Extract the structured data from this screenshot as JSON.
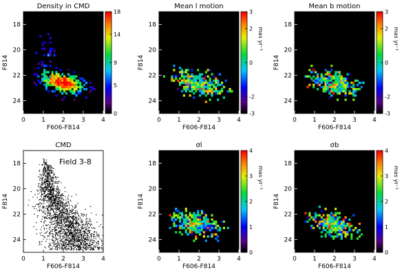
{
  "chart_data": [
    {
      "type": "heatmap",
      "title": "Density in CMD",
      "xlabel": "F606-F814",
      "ylabel": "F814",
      "xlim": [
        0,
        4
      ],
      "ylim": [
        25,
        17
      ],
      "xticks": [
        "0",
        "1",
        "2",
        "3",
        "4"
      ],
      "yticks": [
        "18",
        "20",
        "22",
        "24"
      ],
      "colorbar": {
        "min": 0,
        "max": 18,
        "ticks": [
          "0",
          "5",
          "9",
          "14",
          "18"
        ],
        "label": ""
      },
      "distribution": {
        "center": [
          2.0,
          22.6
        ],
        "color_max": 18
      }
    },
    {
      "type": "heatmap",
      "title": "Mean l motion",
      "xlabel": "F606-F814",
      "ylabel": "F814",
      "xlim": [
        0,
        4
      ],
      "ylim": [
        25,
        17
      ],
      "xticks": [
        "0",
        "1",
        "2",
        "3",
        "4"
      ],
      "yticks": [
        "18",
        "20",
        "22",
        "24"
      ],
      "colorbar": {
        "min": -3,
        "max": 3,
        "ticks": [
          "-3",
          "-2",
          "0",
          "2",
          "3"
        ],
        "label": "mas yr⁻¹"
      },
      "distribution": {
        "center": [
          2.0,
          22.6
        ],
        "color_max": 3
      }
    },
    {
      "type": "heatmap",
      "title": "Mean b motion",
      "xlabel": "F606-F814",
      "ylabel": "F814",
      "xlim": [
        0,
        4
      ],
      "ylim": [
        25,
        17
      ],
      "xticks": [
        "0",
        "1",
        "2",
        "3",
        "4"
      ],
      "yticks": [
        "18",
        "20",
        "22",
        "24"
      ],
      "colorbar": {
        "min": -3,
        "max": 3,
        "ticks": [
          "-3",
          "-2",
          "0",
          "2",
          "3"
        ],
        "label": "mas yr⁻¹"
      },
      "distribution": {
        "center": [
          2.0,
          22.6
        ],
        "color_max": 3
      }
    },
    {
      "type": "scatter",
      "title": "CMD",
      "annotation": "Field 3-8",
      "xlabel": "F606-F814",
      "ylabel": "F814",
      "xlim": [
        0,
        4
      ],
      "ylim": [
        25,
        17
      ],
      "xticks": [
        "0",
        "1",
        "2",
        "3",
        "4"
      ],
      "yticks": [
        "18",
        "20",
        "22",
        "24"
      ],
      "ridge": [
        [
          1.1,
          18.0
        ],
        [
          1.3,
          20.0
        ],
        [
          1.7,
          21.5
        ],
        [
          2.2,
          22.6
        ],
        [
          2.6,
          24.0
        ]
      ]
    },
    {
      "type": "heatmap",
      "title": "σl",
      "xlabel": "F606-F814",
      "ylabel": "F814",
      "xlim": [
        0,
        4
      ],
      "ylim": [
        25,
        17
      ],
      "xticks": [
        "0",
        "1",
        "2",
        "3",
        "4"
      ],
      "yticks": [
        "18",
        "20",
        "22",
        "24"
      ],
      "colorbar": {
        "min": 0,
        "max": 4,
        "ticks": [
          "0",
          "1",
          "2",
          "3",
          "4"
        ],
        "label": "mas yr⁻¹"
      },
      "distribution": {
        "center": [
          1.9,
          22.8
        ],
        "color_max": 4
      }
    },
    {
      "type": "heatmap",
      "title": "σb",
      "xlabel": "F606-F814",
      "ylabel": "F814",
      "xlim": [
        0,
        4
      ],
      "ylim": [
        25,
        17
      ],
      "xticks": [
        "0",
        "1",
        "2",
        "3",
        "4"
      ],
      "yticks": [
        "18",
        "20",
        "22",
        "24"
      ],
      "colorbar": {
        "min": 0,
        "max": 4,
        "ticks": [
          "0",
          "1",
          "2",
          "3",
          "4"
        ],
        "label": "mas yr⁻¹"
      },
      "distribution": {
        "center": [
          1.9,
          22.8
        ],
        "color_max": 4
      }
    }
  ]
}
